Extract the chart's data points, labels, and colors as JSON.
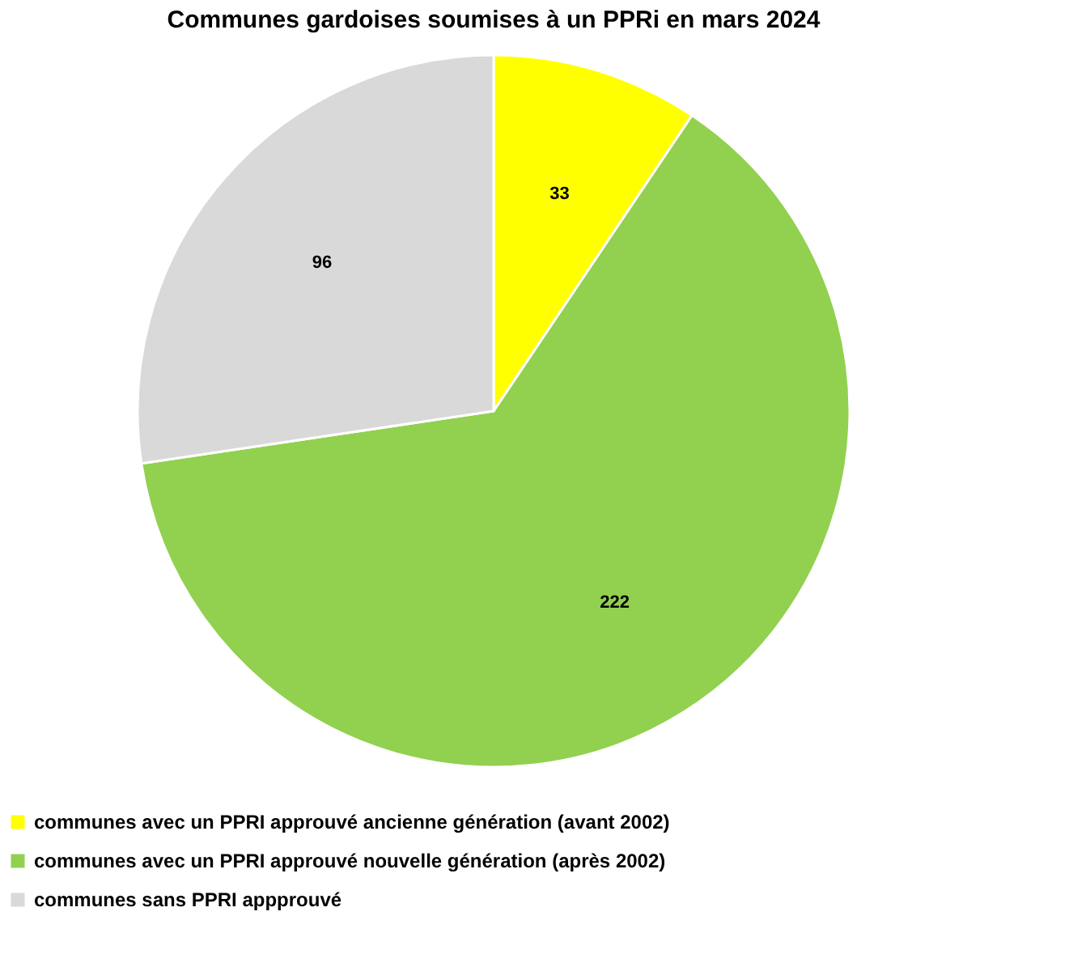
{
  "chart_data": {
    "type": "pie",
    "title": "Communes gardoises soumises à un PPRi en mars 2024",
    "categories": [
      "communes avec un PPRI approuvé ancienne génération (avant 2002)",
      "communes avec un PPRI approuvé nouvelle génération (après 2002)",
      "communes sans PPRI appprouvé"
    ],
    "values": [
      33,
      222,
      96
    ],
    "colors": [
      "#ffff00",
      "#92d050",
      "#d9d9d9"
    ],
    "data_labels": true,
    "legend": "bottom"
  }
}
